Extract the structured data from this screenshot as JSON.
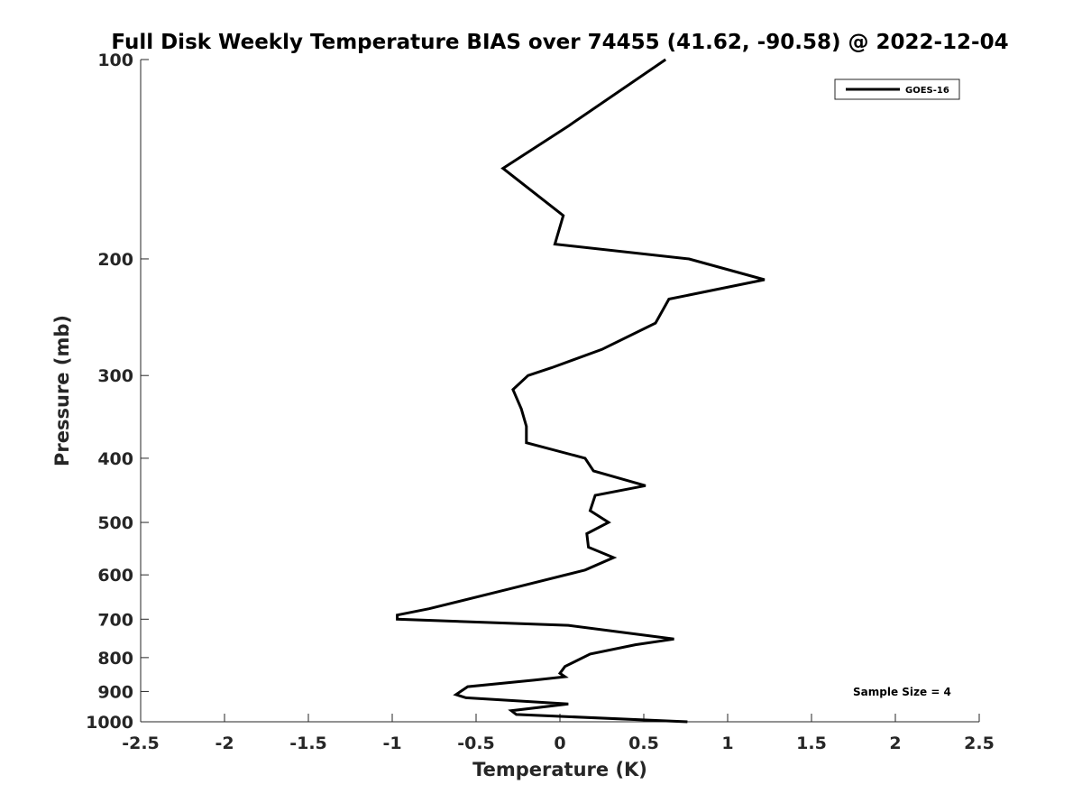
{
  "chart_data": {
    "type": "line",
    "title": "Full Disk Weekly Temperature BIAS over 74455 (41.62, -90.58) @ 2022-12-04",
    "xlabel": "Temperature (K)",
    "ylabel": "Pressure (mb)",
    "xlim": [
      -2.5,
      2.5
    ],
    "ylim": [
      1000,
      100
    ],
    "yscale": "log",
    "xticks": [
      "-2.5",
      "-2",
      "-1.5",
      "-1",
      "-0.5",
      "0",
      "0.5",
      "1",
      "1.5",
      "2",
      "2.5"
    ],
    "yticks": [
      "100",
      "200",
      "300",
      "400",
      "500",
      "600",
      "700",
      "800",
      "900",
      "1000"
    ],
    "grid": false,
    "legend_position": "top-right",
    "annotation": "Sample Size = 4",
    "series": [
      {
        "name": "GOES-16",
        "color": "#000000",
        "points": [
          {
            "x": 0.63,
            "p": 100
          },
          {
            "x": 0.05,
            "p": 126
          },
          {
            "x": -0.34,
            "p": 146
          },
          {
            "x": 0.02,
            "p": 172
          },
          {
            "x": -0.03,
            "p": 190
          },
          {
            "x": 0.77,
            "p": 200
          },
          {
            "x": 1.22,
            "p": 215
          },
          {
            "x": 0.65,
            "p": 230
          },
          {
            "x": 0.57,
            "p": 250
          },
          {
            "x": 0.25,
            "p": 274
          },
          {
            "x": -0.05,
            "p": 292
          },
          {
            "x": -0.19,
            "p": 300
          },
          {
            "x": -0.28,
            "p": 315
          },
          {
            "x": -0.23,
            "p": 337
          },
          {
            "x": -0.2,
            "p": 358
          },
          {
            "x": -0.2,
            "p": 379
          },
          {
            "x": 0.15,
            "p": 400
          },
          {
            "x": 0.2,
            "p": 418
          },
          {
            "x": 0.51,
            "p": 440
          },
          {
            "x": 0.21,
            "p": 455
          },
          {
            "x": 0.18,
            "p": 480
          },
          {
            "x": 0.29,
            "p": 500
          },
          {
            "x": 0.16,
            "p": 520
          },
          {
            "x": 0.17,
            "p": 545
          },
          {
            "x": 0.32,
            "p": 565
          },
          {
            "x": 0.15,
            "p": 590
          },
          {
            "x": -0.3,
            "p": 630
          },
          {
            "x": -0.78,
            "p": 675
          },
          {
            "x": -0.97,
            "p": 690
          },
          {
            "x": -0.97,
            "p": 700
          },
          {
            "x": 0.05,
            "p": 715
          },
          {
            "x": 0.68,
            "p": 750
          },
          {
            "x": 0.45,
            "p": 765
          },
          {
            "x": 0.18,
            "p": 790
          },
          {
            "x": 0.03,
            "p": 825
          },
          {
            "x": 0.0,
            "p": 845
          },
          {
            "x": 0.03,
            "p": 855
          },
          {
            "x": -0.15,
            "p": 865
          },
          {
            "x": -0.55,
            "p": 885
          },
          {
            "x": -0.62,
            "p": 910
          },
          {
            "x": -0.56,
            "p": 920
          },
          {
            "x": 0.05,
            "p": 940
          },
          {
            "x": -0.29,
            "p": 962
          },
          {
            "x": -0.26,
            "p": 975
          },
          {
            "x": 0.76,
            "p": 1000
          }
        ]
      }
    ]
  }
}
